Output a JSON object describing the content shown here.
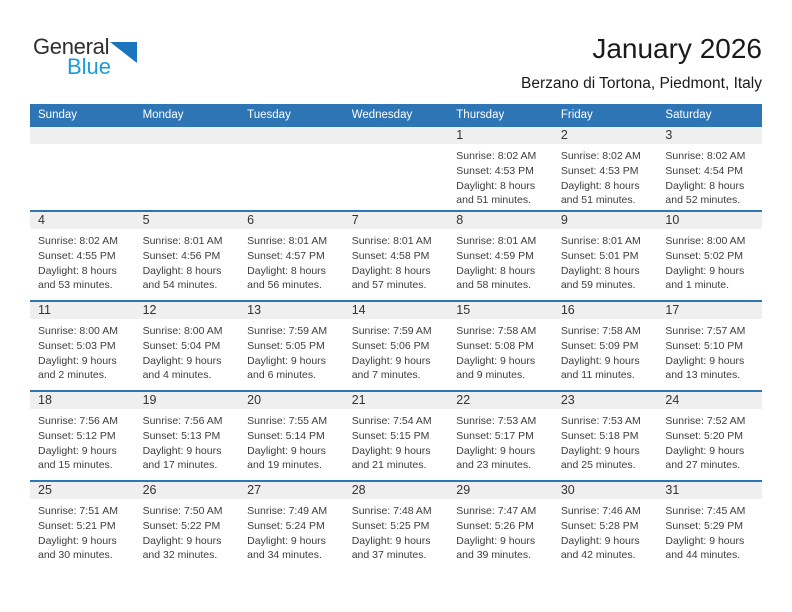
{
  "logo": {
    "part1": "General",
    "part2": "Blue"
  },
  "header": {
    "title": "January 2026",
    "subtitle": "Berzano di Tortona, Piedmont, Italy"
  },
  "colors": {
    "header_blue": "#2E75B6",
    "band_gray": "#EFEFEF",
    "logo_blue": "#1E9CD8",
    "logo_triangle_blue": "#1C75BC"
  },
  "calendar": {
    "weekdays": [
      "Sunday",
      "Monday",
      "Tuesday",
      "Wednesday",
      "Thursday",
      "Friday",
      "Saturday"
    ],
    "weeks": [
      [
        {
          "day": "",
          "sunrise": "",
          "sunset": "",
          "daylight1": "",
          "daylight2": ""
        },
        {
          "day": "",
          "sunrise": "",
          "sunset": "",
          "daylight1": "",
          "daylight2": ""
        },
        {
          "day": "",
          "sunrise": "",
          "sunset": "",
          "daylight1": "",
          "daylight2": ""
        },
        {
          "day": "",
          "sunrise": "",
          "sunset": "",
          "daylight1": "",
          "daylight2": ""
        },
        {
          "day": "1",
          "sunrise": "Sunrise: 8:02 AM",
          "sunset": "Sunset: 4:53 PM",
          "daylight1": "Daylight: 8 hours",
          "daylight2": "and 51 minutes."
        },
        {
          "day": "2",
          "sunrise": "Sunrise: 8:02 AM",
          "sunset": "Sunset: 4:53 PM",
          "daylight1": "Daylight: 8 hours",
          "daylight2": "and 51 minutes."
        },
        {
          "day": "3",
          "sunrise": "Sunrise: 8:02 AM",
          "sunset": "Sunset: 4:54 PM",
          "daylight1": "Daylight: 8 hours",
          "daylight2": "and 52 minutes."
        }
      ],
      [
        {
          "day": "4",
          "sunrise": "Sunrise: 8:02 AM",
          "sunset": "Sunset: 4:55 PM",
          "daylight1": "Daylight: 8 hours",
          "daylight2": "and 53 minutes."
        },
        {
          "day": "5",
          "sunrise": "Sunrise: 8:01 AM",
          "sunset": "Sunset: 4:56 PM",
          "daylight1": "Daylight: 8 hours",
          "daylight2": "and 54 minutes."
        },
        {
          "day": "6",
          "sunrise": "Sunrise: 8:01 AM",
          "sunset": "Sunset: 4:57 PM",
          "daylight1": "Daylight: 8 hours",
          "daylight2": "and 56 minutes."
        },
        {
          "day": "7",
          "sunrise": "Sunrise: 8:01 AM",
          "sunset": "Sunset: 4:58 PM",
          "daylight1": "Daylight: 8 hours",
          "daylight2": "and 57 minutes."
        },
        {
          "day": "8",
          "sunrise": "Sunrise: 8:01 AM",
          "sunset": "Sunset: 4:59 PM",
          "daylight1": "Daylight: 8 hours",
          "daylight2": "and 58 minutes."
        },
        {
          "day": "9",
          "sunrise": "Sunrise: 8:01 AM",
          "sunset": "Sunset: 5:01 PM",
          "daylight1": "Daylight: 8 hours",
          "daylight2": "and 59 minutes."
        },
        {
          "day": "10",
          "sunrise": "Sunrise: 8:00 AM",
          "sunset": "Sunset: 5:02 PM",
          "daylight1": "Daylight: 9 hours",
          "daylight2": "and 1 minute."
        }
      ],
      [
        {
          "day": "11",
          "sunrise": "Sunrise: 8:00 AM",
          "sunset": "Sunset: 5:03 PM",
          "daylight1": "Daylight: 9 hours",
          "daylight2": "and 2 minutes."
        },
        {
          "day": "12",
          "sunrise": "Sunrise: 8:00 AM",
          "sunset": "Sunset: 5:04 PM",
          "daylight1": "Daylight: 9 hours",
          "daylight2": "and 4 minutes."
        },
        {
          "day": "13",
          "sunrise": "Sunrise: 7:59 AM",
          "sunset": "Sunset: 5:05 PM",
          "daylight1": "Daylight: 9 hours",
          "daylight2": "and 6 minutes."
        },
        {
          "day": "14",
          "sunrise": "Sunrise: 7:59 AM",
          "sunset": "Sunset: 5:06 PM",
          "daylight1": "Daylight: 9 hours",
          "daylight2": "and 7 minutes."
        },
        {
          "day": "15",
          "sunrise": "Sunrise: 7:58 AM",
          "sunset": "Sunset: 5:08 PM",
          "daylight1": "Daylight: 9 hours",
          "daylight2": "and 9 minutes."
        },
        {
          "day": "16",
          "sunrise": "Sunrise: 7:58 AM",
          "sunset": "Sunset: 5:09 PM",
          "daylight1": "Daylight: 9 hours",
          "daylight2": "and 11 minutes."
        },
        {
          "day": "17",
          "sunrise": "Sunrise: 7:57 AM",
          "sunset": "Sunset: 5:10 PM",
          "daylight1": "Daylight: 9 hours",
          "daylight2": "and 13 minutes."
        }
      ],
      [
        {
          "day": "18",
          "sunrise": "Sunrise: 7:56 AM",
          "sunset": "Sunset: 5:12 PM",
          "daylight1": "Daylight: 9 hours",
          "daylight2": "and 15 minutes."
        },
        {
          "day": "19",
          "sunrise": "Sunrise: 7:56 AM",
          "sunset": "Sunset: 5:13 PM",
          "daylight1": "Daylight: 9 hours",
          "daylight2": "and 17 minutes."
        },
        {
          "day": "20",
          "sunrise": "Sunrise: 7:55 AM",
          "sunset": "Sunset: 5:14 PM",
          "daylight1": "Daylight: 9 hours",
          "daylight2": "and 19 minutes."
        },
        {
          "day": "21",
          "sunrise": "Sunrise: 7:54 AM",
          "sunset": "Sunset: 5:15 PM",
          "daylight1": "Daylight: 9 hours",
          "daylight2": "and 21 minutes."
        },
        {
          "day": "22",
          "sunrise": "Sunrise: 7:53 AM",
          "sunset": "Sunset: 5:17 PM",
          "daylight1": "Daylight: 9 hours",
          "daylight2": "and 23 minutes."
        },
        {
          "day": "23",
          "sunrise": "Sunrise: 7:53 AM",
          "sunset": "Sunset: 5:18 PM",
          "daylight1": "Daylight: 9 hours",
          "daylight2": "and 25 minutes."
        },
        {
          "day": "24",
          "sunrise": "Sunrise: 7:52 AM",
          "sunset": "Sunset: 5:20 PM",
          "daylight1": "Daylight: 9 hours",
          "daylight2": "and 27 minutes."
        }
      ],
      [
        {
          "day": "25",
          "sunrise": "Sunrise: 7:51 AM",
          "sunset": "Sunset: 5:21 PM",
          "daylight1": "Daylight: 9 hours",
          "daylight2": "and 30 minutes."
        },
        {
          "day": "26",
          "sunrise": "Sunrise: 7:50 AM",
          "sunset": "Sunset: 5:22 PM",
          "daylight1": "Daylight: 9 hours",
          "daylight2": "and 32 minutes."
        },
        {
          "day": "27",
          "sunrise": "Sunrise: 7:49 AM",
          "sunset": "Sunset: 5:24 PM",
          "daylight1": "Daylight: 9 hours",
          "daylight2": "and 34 minutes."
        },
        {
          "day": "28",
          "sunrise": "Sunrise: 7:48 AM",
          "sunset": "Sunset: 5:25 PM",
          "daylight1": "Daylight: 9 hours",
          "daylight2": "and 37 minutes."
        },
        {
          "day": "29",
          "sunrise": "Sunrise: 7:47 AM",
          "sunset": "Sunset: 5:26 PM",
          "daylight1": "Daylight: 9 hours",
          "daylight2": "and 39 minutes."
        },
        {
          "day": "30",
          "sunrise": "Sunrise: 7:46 AM",
          "sunset": "Sunset: 5:28 PM",
          "daylight1": "Daylight: 9 hours",
          "daylight2": "and 42 minutes."
        },
        {
          "day": "31",
          "sunrise": "Sunrise: 7:45 AM",
          "sunset": "Sunset: 5:29 PM",
          "daylight1": "Daylight: 9 hours",
          "daylight2": "and 44 minutes."
        }
      ]
    ]
  }
}
